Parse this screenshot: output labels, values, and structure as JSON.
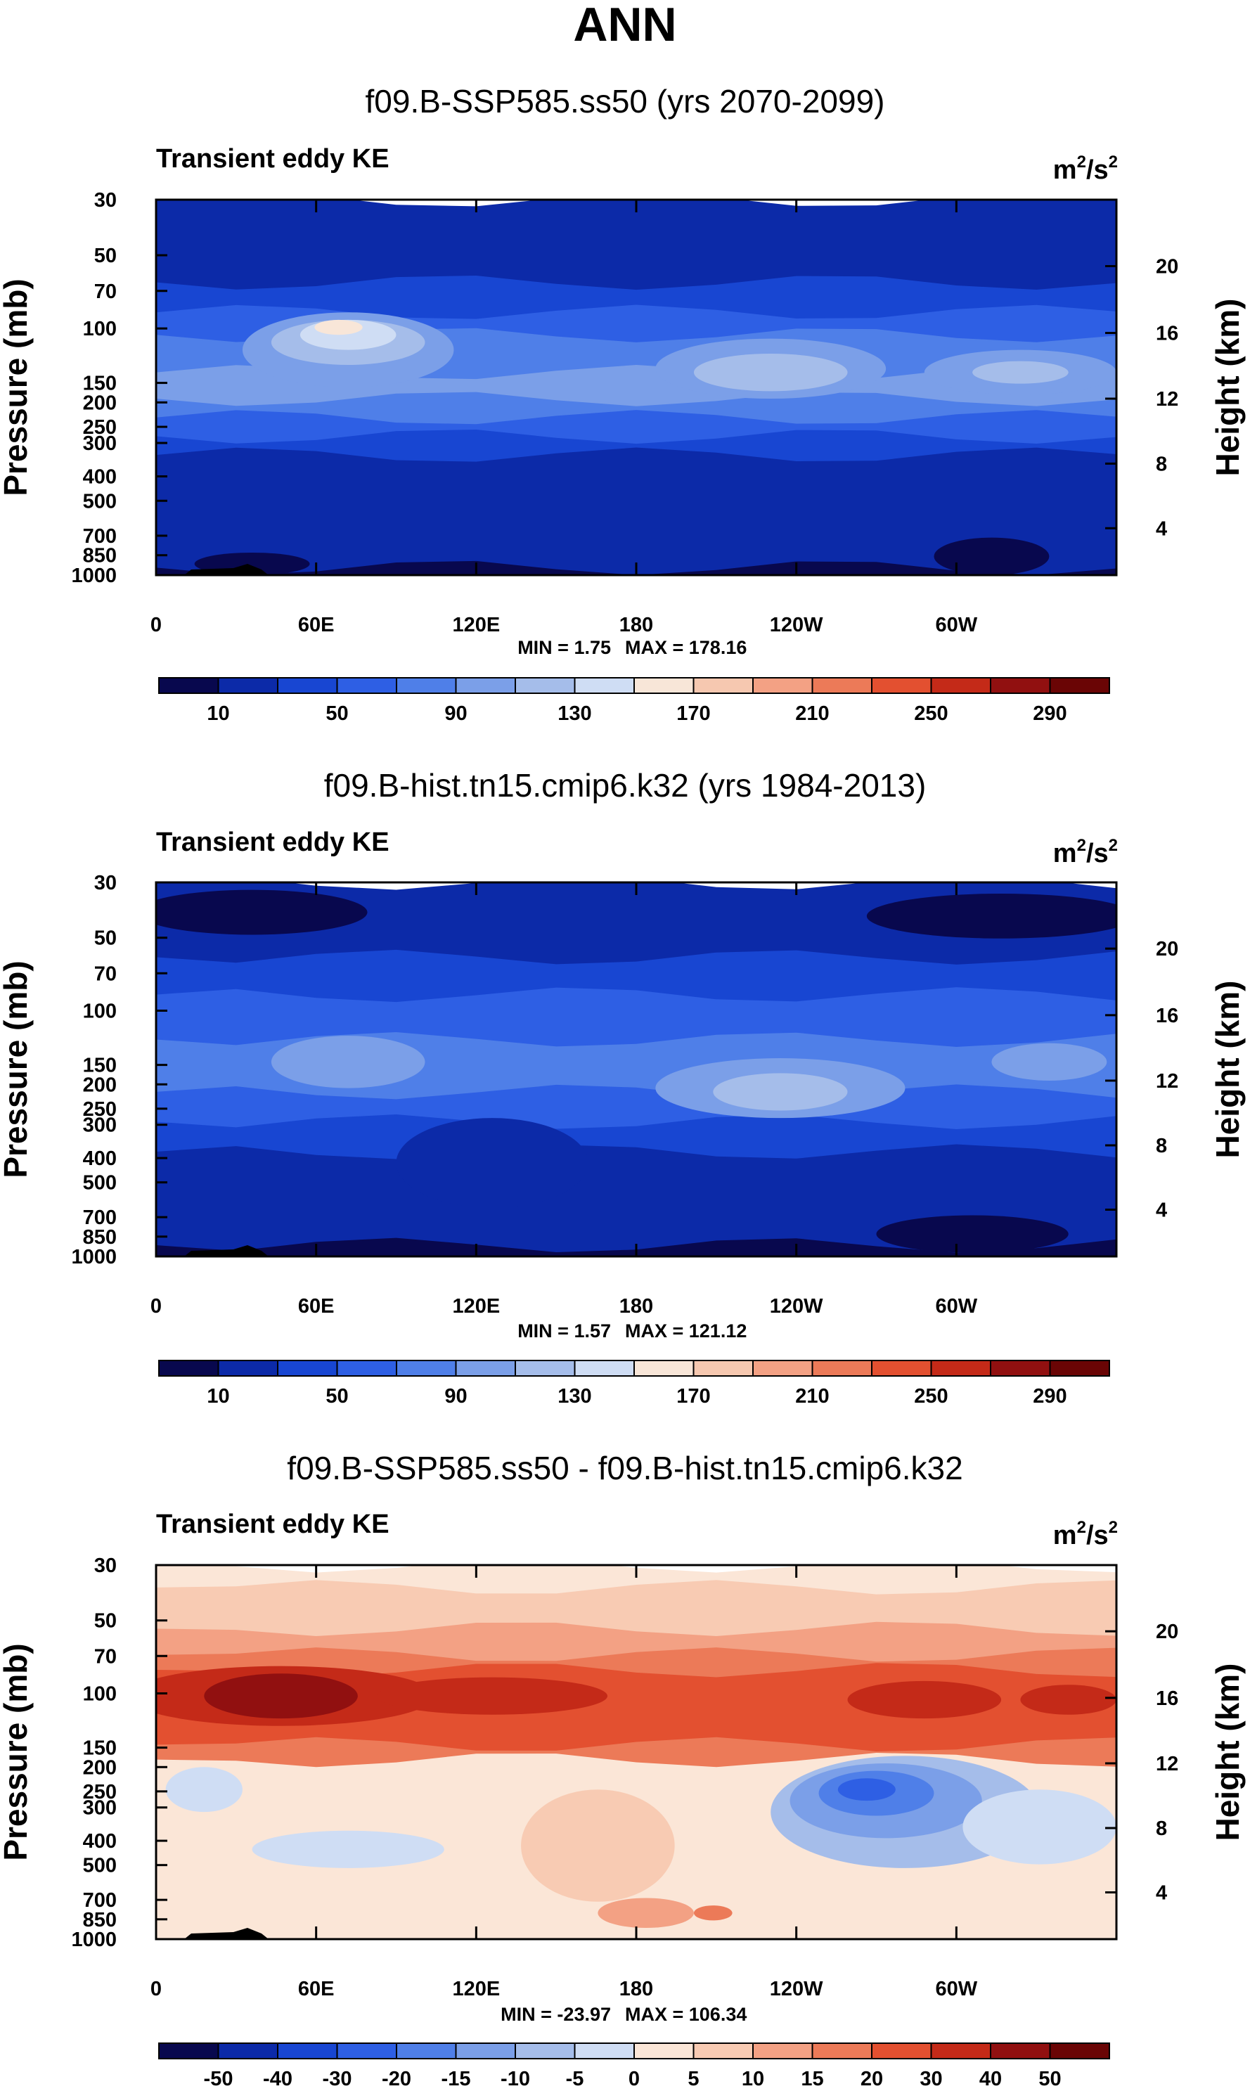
{
  "main_title": "ANN",
  "colors": {
    "blue_seq": [
      "#08084e",
      "#0c2aa8",
      "#1846d2",
      "#2e5fe4",
      "#4f7fe8",
      "#7b9fe8",
      "#a5bdea",
      "#cfddf4",
      "#f8e6d8",
      "#f6c8b0",
      "#f3a184",
      "#ec7a58",
      "#e35030",
      "#c42a18",
      "#911010",
      "#6a0505"
    ],
    "diverging": [
      "#08084e",
      "#0c2aa8",
      "#1846d2",
      "#2e5fe4",
      "#4f7fe8",
      "#7b9fe8",
      "#a5bdea",
      "#cfddf4",
      "#fbe6d7",
      "#f8cbb3",
      "#f3a184",
      "#ec7a58",
      "#e35030",
      "#c42a18",
      "#911010",
      "#6a0505"
    ]
  },
  "chart_data": [
    {
      "type": "heatmap",
      "title": "f09.B-SSP585.ss50 (yrs 2070-2099)",
      "variable": "Transient eddy KE",
      "units_base": "m",
      "units_sup1": "2",
      "units_mid": "/s",
      "units_sup2": "2",
      "ylabel": "Pressure (mb)",
      "y2label": "Height (km)",
      "xticks": [
        "0",
        "60E",
        "120E",
        "180",
        "120W",
        "60W"
      ],
      "yticks": [
        "30",
        "50",
        "70",
        "100",
        "150",
        "200",
        "250",
        "300",
        "400",
        "500",
        "700",
        "850",
        "1000"
      ],
      "y2ticks": [
        "20",
        "16",
        "12",
        "8",
        "4"
      ],
      "min_label": "MIN =   1.75",
      "max_label": "MAX = 178.16",
      "colorbar_labels": [
        "10",
        "50",
        "90",
        "130",
        "170",
        "210",
        "250",
        "290"
      ]
    },
    {
      "type": "heatmap",
      "title": "f09.B-hist.tn15.cmip6.k32 (yrs 1984-2013)",
      "variable": "Transient eddy KE",
      "units_base": "m",
      "units_sup1": "2",
      "units_mid": "/s",
      "units_sup2": "2",
      "ylabel": "Pressure (mb)",
      "y2label": "Height (km)",
      "xticks": [
        "0",
        "60E",
        "120E",
        "180",
        "120W",
        "60W"
      ],
      "yticks": [
        "30",
        "50",
        "70",
        "100",
        "150",
        "200",
        "250",
        "300",
        "400",
        "500",
        "700",
        "850",
        "1000"
      ],
      "y2ticks": [
        "20",
        "16",
        "12",
        "8",
        "4"
      ],
      "min_label": "MIN =   1.57",
      "max_label": "MAX = 121.12",
      "colorbar_labels": [
        "10",
        "50",
        "90",
        "130",
        "170",
        "210",
        "250",
        "290"
      ]
    },
    {
      "type": "heatmap",
      "title": "f09.B-SSP585.ss50 - f09.B-hist.tn15.cmip6.k32",
      "variable": "Transient eddy KE",
      "units_base": "m",
      "units_sup1": "2",
      "units_mid": "/s",
      "units_sup2": "2",
      "ylabel": "Pressure (mb)",
      "y2label": "Height (km)",
      "xticks": [
        "0",
        "60E",
        "120E",
        "180",
        "120W",
        "60W"
      ],
      "yticks": [
        "30",
        "50",
        "70",
        "100",
        "150",
        "200",
        "250",
        "300",
        "400",
        "500",
        "700",
        "850",
        "1000"
      ],
      "y2ticks": [
        "20",
        "16",
        "12",
        "8",
        "4"
      ],
      "min_label": "MIN = -23.97",
      "max_label": "MAX = 106.34",
      "colorbar_labels": [
        "-50",
        "-40",
        "-30",
        "-20",
        "-15",
        "-10",
        "-5",
        "0",
        "5",
        "10",
        "15",
        "20",
        "30",
        "40",
        "50"
      ]
    }
  ]
}
